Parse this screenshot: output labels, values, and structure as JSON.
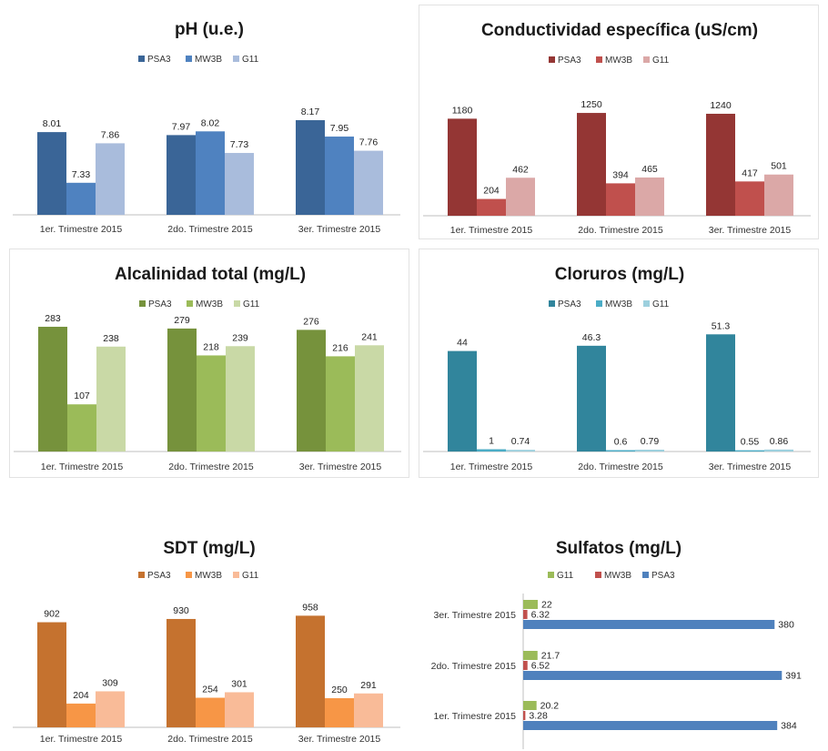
{
  "chart_data": [
    {
      "type": "bar",
      "title": "pH (u.e.)",
      "categories": [
        "1er. Trimestre 2015",
        "2do. Trimestre 2015",
        "3er. Trimestre 2015"
      ],
      "series": [
        {
          "name": "PSA3",
          "values": [
            8.01,
            7.97,
            8.17
          ],
          "labels": [
            "8.01",
            "7.97",
            "8.17"
          ],
          "color": "#3A6597"
        },
        {
          "name": "MW3B",
          "values": [
            7.33,
            8.02,
            7.95
          ],
          "labels": [
            "7.33",
            "8.02",
            "7.95"
          ],
          "color": "#4F82C0"
        },
        {
          "name": "G11",
          "values": [
            7.86,
            7.73,
            7.76
          ],
          "labels": [
            "7.86",
            "7.73",
            "7.76"
          ],
          "color": "#A9BCDC"
        }
      ],
      "ylim": [
        6.9,
        8.5
      ],
      "grid": false,
      "legend": "top"
    },
    {
      "type": "bar",
      "title": "Conductividad específica (uS/cm)",
      "categories": [
        "1er. Trimestre 2015",
        "2do. Trimestre 2015",
        "3er. Trimestre 2015"
      ],
      "series": [
        {
          "name": "PSA3",
          "values": [
            1180,
            1250,
            1240
          ],
          "labels": [
            "1180",
            "1250",
            "1240"
          ],
          "color": "#943634"
        },
        {
          "name": "MW3B",
          "values": [
            204,
            394,
            417
          ],
          "labels": [
            "204",
            "394",
            "417"
          ],
          "color": "#C0504D"
        },
        {
          "name": "G11",
          "values": [
            462,
            465,
            501
          ],
          "labels": [
            "462",
            "465",
            "501"
          ],
          "color": "#DBA8A7"
        }
      ],
      "ylim": [
        0,
        1450
      ],
      "grid": false,
      "legend": "top"
    },
    {
      "type": "bar",
      "title": "Alcalinidad total (mg/L)",
      "categories": [
        "1er. Trimestre 2015",
        "2do. Trimestre 2015",
        "3er. Trimestre 2015"
      ],
      "series": [
        {
          "name": "PSA3",
          "values": [
            283,
            279,
            276
          ],
          "labels": [
            "283",
            "279",
            "276"
          ],
          "color": "#76923C"
        },
        {
          "name": "MW3B",
          "values": [
            107,
            218,
            216
          ],
          "labels": [
            "107",
            "218",
            "216"
          ],
          "color": "#9BBB59"
        },
        {
          "name": "G11",
          "values": [
            238,
            239,
            241
          ],
          "labels": [
            "238",
            "239",
            "241"
          ],
          "color": "#C9D9A6"
        }
      ],
      "ylim": [
        0,
        285
      ],
      "grid": false,
      "legend": "top"
    },
    {
      "type": "bar",
      "title": "Cloruros (mg/L)",
      "categories": [
        "1er. Trimestre 2015",
        "2do. Trimestre 2015",
        "3er. Trimestre 2015"
      ],
      "series": [
        {
          "name": "PSA3",
          "values": [
            44,
            46.3,
            51.3
          ],
          "labels": [
            "44",
            "46.3",
            "51.3"
          ],
          "color": "#31859C"
        },
        {
          "name": "MW3B",
          "values": [
            1,
            0.6,
            0.55
          ],
          "labels": [
            "1",
            "0.6",
            "0.55"
          ],
          "color": "#4BACC6"
        },
        {
          "name": "G11",
          "values": [
            0.74,
            0.79,
            0.86
          ],
          "labels": [
            "0.74",
            "0.79",
            "0.86"
          ],
          "color": "#9DD0DE"
        }
      ],
      "ylim": [
        0,
        55
      ],
      "grid": false,
      "legend": "top"
    },
    {
      "type": "bar",
      "title": "SDT  (mg/L)",
      "categories": [
        "1er. Trimestre 2015",
        "2do. Trimestre 2015",
        "3er. Trimestre 2015"
      ],
      "series": [
        {
          "name": "PSA3",
          "values": [
            902,
            930,
            958
          ],
          "labels": [
            "902",
            "930",
            "958"
          ],
          "color": "#C5722F"
        },
        {
          "name": "MW3B",
          "values": [
            204,
            254,
            250
          ],
          "labels": [
            "204",
            "254",
            "250"
          ],
          "color": "#F79646"
        },
        {
          "name": "G11",
          "values": [
            309,
            301,
            291
          ],
          "labels": [
            "309",
            "301",
            "291"
          ],
          "color": "#F9BB98"
        }
      ],
      "ylim": [
        0,
        1000
      ],
      "grid": false,
      "legend": "top"
    },
    {
      "type": "bar",
      "orientation": "horizontal",
      "title": "Sulfatos (mg/L)",
      "categories": [
        "3er. Trimestre 2015",
        "2do. Trimestre 2015",
        "1er. Trimestre 2015"
      ],
      "series": [
        {
          "name": "G11",
          "values": [
            22,
            21.7,
            20.2
          ],
          "labels": [
            "22",
            "21.7",
            "20.2"
          ],
          "color": "#9BBB59"
        },
        {
          "name": "MW3B",
          "values": [
            6.32,
            6.52,
            3.28
          ],
          "labels": [
            "6.32",
            "6.52",
            "3.28"
          ],
          "color": "#C0504D"
        },
        {
          "name": "PSA3",
          "values": [
            380,
            391,
            384
          ],
          "labels": [
            "380",
            "391",
            "384"
          ],
          "color": "#4F81BD"
        }
      ],
      "xlim": [
        0,
        392
      ],
      "grid": false,
      "legend": "top"
    }
  ]
}
